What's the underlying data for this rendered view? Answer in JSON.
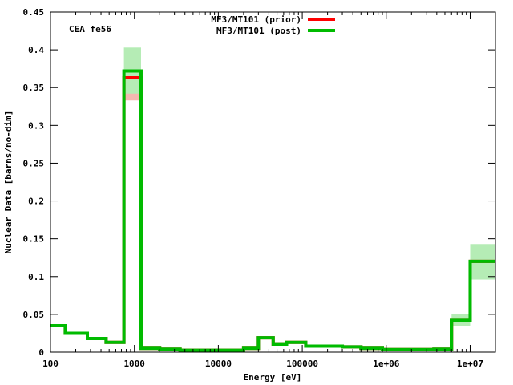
{
  "chart_data": {
    "type": "line",
    "step": true,
    "annotation": "CEA fe56",
    "xlabel": "Energy [eV]",
    "ylabel": "Nuclear Data [barns/no-dim]",
    "xscale": "log",
    "xlim": [
      100,
      20000000
    ],
    "ylim": [
      0,
      0.45
    ],
    "grid": false,
    "legend_position": "top-center",
    "x_ticks": [
      {
        "value": 100,
        "label": "100"
      },
      {
        "value": 1000,
        "label": "1000"
      },
      {
        "value": 10000,
        "label": "10000"
      },
      {
        "value": 100000,
        "label": "100000"
      },
      {
        "value": 1000000,
        "label": "1e+06"
      },
      {
        "value": 10000000,
        "label": "1e+07"
      }
    ],
    "y_ticks": [
      {
        "value": 0,
        "label": "0"
      },
      {
        "value": 0.05,
        "label": "0.05"
      },
      {
        "value": 0.1,
        "label": "0.1"
      },
      {
        "value": 0.15,
        "label": "0.15"
      },
      {
        "value": 0.2,
        "label": "0.2"
      },
      {
        "value": 0.25,
        "label": "0.25"
      },
      {
        "value": 0.3,
        "label": "0.3"
      },
      {
        "value": 0.35,
        "label": "0.35"
      },
      {
        "value": 0.4,
        "label": "0.4"
      },
      {
        "value": 0.45,
        "label": "0.45"
      }
    ],
    "bin_edges": [
      100,
      150,
      275,
      460,
      750,
      1200,
      2000,
      3500,
      20000,
      30000,
      45000,
      65000,
      110000,
      300000,
      500000,
      900000,
      2500000,
      3700000,
      6000000,
      10000000,
      20000000
    ],
    "series": [
      {
        "name": "MF3/MT101 (prior)",
        "color": "#ff0000",
        "values": [
          0.035,
          0.025,
          0.018,
          0.013,
          0.363,
          0.005,
          0.004,
          0.0025,
          0.005,
          0.019,
          0.01,
          0.013,
          0.008,
          0.007,
          0.005,
          0.0035,
          0.0035,
          0.004,
          0.042,
          0.12
        ]
      },
      {
        "name": "MF3/MT101 (post)",
        "color": "#00bb00",
        "values": [
          0.035,
          0.025,
          0.018,
          0.013,
          0.372,
          0.005,
          0.004,
          0.0025,
          0.005,
          0.019,
          0.01,
          0.013,
          0.008,
          0.007,
          0.005,
          0.0035,
          0.0035,
          0.004,
          0.042,
          0.12
        ]
      }
    ],
    "uncertainty_bands": [
      {
        "series": "MF3/MT101 (prior)",
        "color": "#f4b8b0",
        "bin": [
          750,
          1200
        ],
        "range": [
          0.333,
          0.372
        ]
      },
      {
        "series": "MF3/MT101 (post)",
        "color": "#b5ecb5",
        "bin": [
          750,
          1200
        ],
        "range": [
          0.342,
          0.403
        ]
      },
      {
        "series": "MF3/MT101 (post)",
        "color": "#b5ecb5",
        "bin": [
          6000000,
          10000000
        ],
        "range": [
          0.034,
          0.05
        ]
      },
      {
        "series": "MF3/MT101 (post)",
        "color": "#b5ecb5",
        "bin": [
          10000000,
          20000000
        ],
        "range": [
          0.096,
          0.143
        ]
      }
    ]
  }
}
